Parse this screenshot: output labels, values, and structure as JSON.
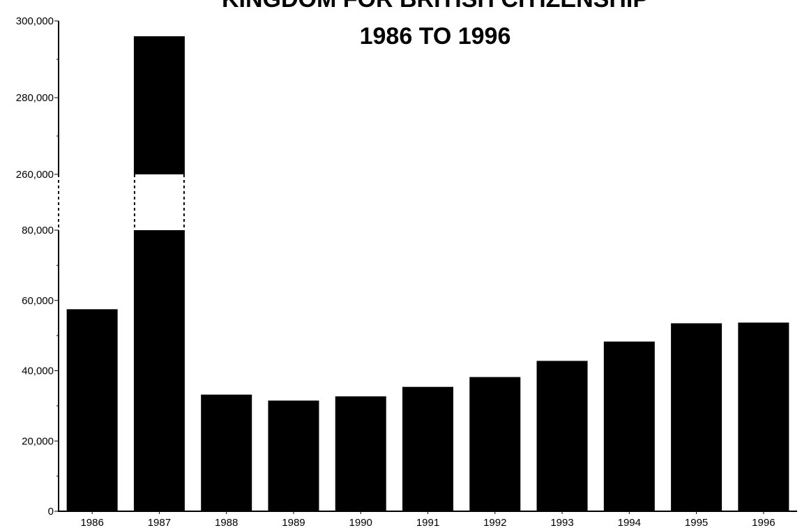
{
  "chart_data": {
    "type": "bar",
    "title_lines": [
      "KINGDOM FOR BRITISH CITIZENSHIP",
      "1986 TO 1996"
    ],
    "categories": [
      "1986",
      "1987",
      "1988",
      "1989",
      "1990",
      "1991",
      "1992",
      "1993",
      "1994",
      "1995",
      "1996"
    ],
    "values": [
      57500,
      296000,
      33200,
      31500,
      32700,
      35400,
      38200,
      42800,
      48300,
      53500,
      53700
    ],
    "axis_break": {
      "from": 80000,
      "to": 260000
    },
    "ylim": [
      0,
      300000
    ],
    "yticks_labels": [
      "0",
      "20,000",
      "40,000",
      "60,000",
      "80,000",
      "260,000",
      "280,000",
      "300,000"
    ],
    "xlabel": "",
    "ylabel": "",
    "grid": false,
    "bar_color": "#000000"
  }
}
